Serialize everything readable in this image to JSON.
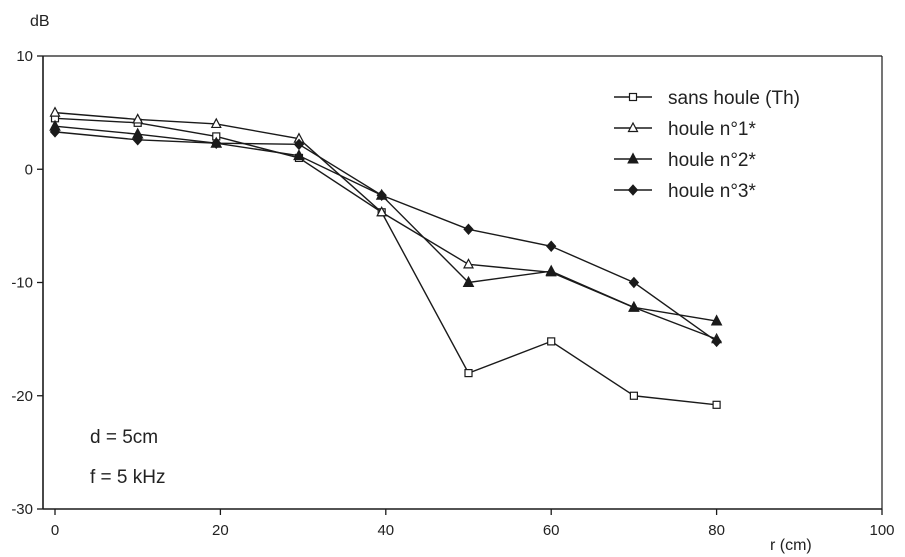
{
  "chart_data": {
    "type": "line",
    "xlabel": "r (cm)",
    "ylabel": "dB",
    "xlim": [
      0,
      100
    ],
    "ylim": [
      -30,
      10
    ],
    "x_ticks": [
      "0",
      "20",
      "40",
      "60",
      "80",
      "100"
    ],
    "y_ticks": [
      "10",
      "0",
      "-10",
      "-20",
      "-30"
    ],
    "x_tick_values": [
      0,
      20,
      40,
      60,
      80,
      100
    ],
    "y_tick_values": [
      10,
      0,
      -10,
      -20,
      -30
    ],
    "grid": false,
    "legend_position": "top-right",
    "annotations": [
      "d = 5cm",
      "f = 5 kHz"
    ],
    "series": [
      {
        "name": "sans houle (Th)",
        "marker": "open-square",
        "x": [
          0,
          10,
          19.5,
          29.5,
          39.5,
          50,
          60,
          70,
          80
        ],
        "y": [
          4.5,
          4.1,
          2.9,
          1.0,
          -3.8,
          -18.0,
          -15.2,
          -20.0,
          -20.8
        ]
      },
      {
        "name": "houle n°1*",
        "marker": "open-triangle",
        "x": [
          0,
          10,
          19.5,
          29.5,
          39.5,
          50,
          60,
          70,
          80
        ],
        "y": [
          5.0,
          4.4,
          4.0,
          2.7,
          -3.8,
          -8.4,
          -9.1,
          -12.2,
          -15.0
        ]
      },
      {
        "name": "houle n°2*",
        "marker": "filled-triangle",
        "x": [
          0,
          10,
          19.5,
          29.5,
          39.5,
          50,
          60,
          70,
          80
        ],
        "y": [
          3.8,
          3.1,
          2.3,
          1.2,
          -2.3,
          -10.0,
          -9.0,
          -12.2,
          -13.4
        ]
      },
      {
        "name": "houle n°3*",
        "marker": "filled-diamond",
        "x": [
          0,
          10,
          19.5,
          29.5,
          39.5,
          50,
          60,
          70,
          80
        ],
        "y": [
          3.3,
          2.6,
          2.3,
          2.2,
          -2.3,
          -5.3,
          -6.8,
          -10.0,
          -15.2
        ]
      }
    ],
    "colors": {
      "ink": "#1a1a1a",
      "background": "#ffffff"
    }
  }
}
